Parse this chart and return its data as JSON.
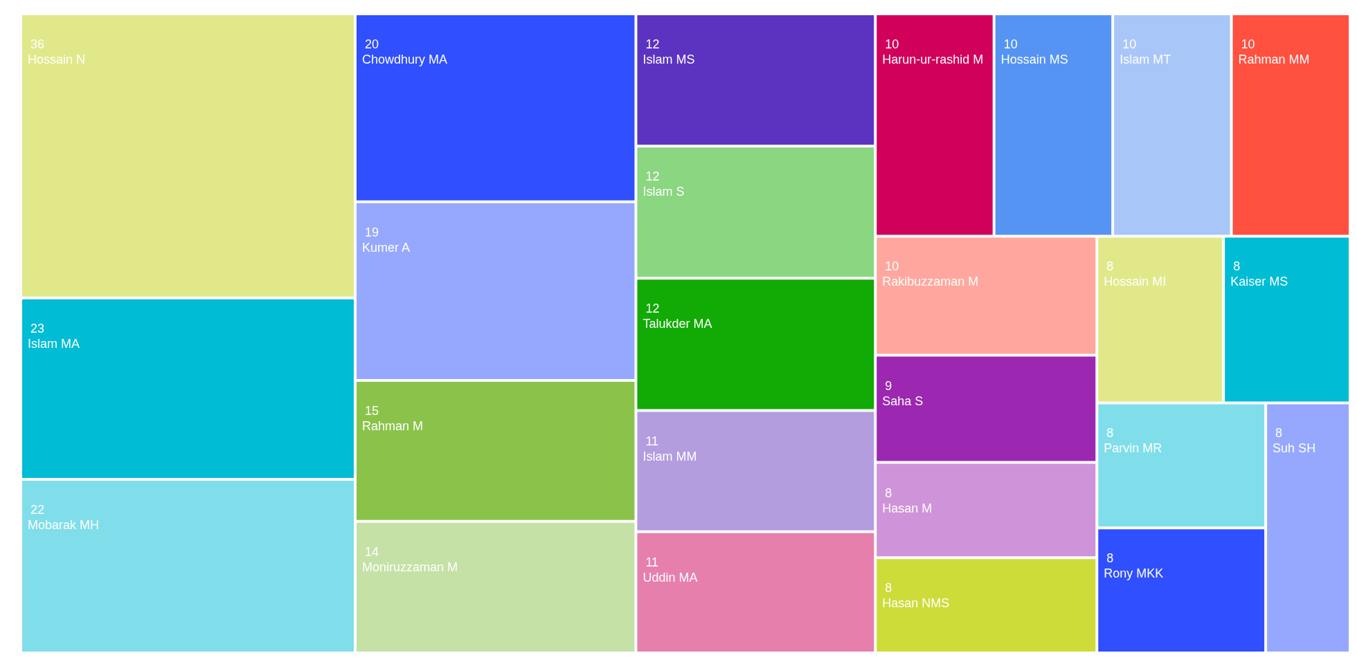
{
  "chart_data": {
    "type": "other",
    "data_labels": true,
    "categories": [
      "Hossain N",
      "Islam MA",
      "Mobarak MH",
      "Chowdhury MA",
      "Kumer A",
      "Rahman M",
      "Moniruzzaman M",
      "Islam MS",
      "Islam S",
      "Talukder MA",
      "Islam MM",
      "Uddin MA",
      "Harun-ur-rashid M",
      "Hossain MS",
      "Islam MT",
      "Rahman MM",
      "Rakibuzzaman M",
      "Saha S",
      "Hasan M",
      "Hasan NMS",
      "Hossain MI",
      "Kaiser MS",
      "Parvin MR",
      "Rony MKK",
      "Suh SH"
    ],
    "values": [
      36,
      23,
      22,
      20,
      19,
      15,
      14,
      12,
      12,
      12,
      11,
      11,
      10,
      10,
      10,
      10,
      10,
      9,
      8,
      8,
      8,
      8,
      8,
      8,
      8
    ],
    "colors": [
      "#e1e88a",
      "#00bcd4",
      "#80deea",
      "#304ffe",
      "#96a8fe",
      "#8bc34a",
      "#c5e1a5",
      "#5c33c1",
      "#8bd680",
      "#12aa04",
      "#b39ddf",
      "#e67fac",
      "#d1005a",
      "#5594f3",
      "#a9c6f9",
      "#ff5040",
      "#ffa79e",
      "#9c27b0",
      "#ce93d8",
      "#cddc39",
      "#e1e88a",
      "#00bcd4",
      "#80deea",
      "#304ffe",
      "#96a8fe"
    ]
  }
}
